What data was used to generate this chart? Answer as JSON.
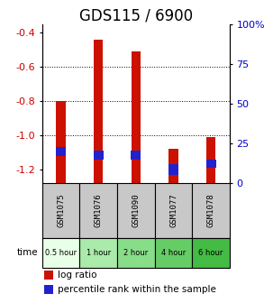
{
  "title": "GDS115 / 6900",
  "samples": [
    "GSM1075",
    "GSM1076",
    "GSM1090",
    "GSM1077",
    "GSM1078"
  ],
  "time_labels": [
    "0.5 hour",
    "1 hour",
    "2 hour",
    "4 hour",
    "6 hour"
  ],
  "log_ratios": [
    -0.8,
    -0.44,
    -0.51,
    -1.08,
    -1.01
  ],
  "percentile_tops": [
    -1.07,
    -1.09,
    -1.09,
    -1.17,
    -1.14
  ],
  "percentile_bottoms": [
    -1.12,
    -1.14,
    -1.14,
    -1.23,
    -1.19
  ],
  "ylim": [
    -1.28,
    -0.35
  ],
  "yticks_left": [
    -0.4,
    -0.6,
    -0.8,
    -1.0,
    -1.2
  ],
  "yticks_right": [
    100,
    75,
    50,
    25,
    0
  ],
  "bar_width": 0.25,
  "bar_color": "#cc1100",
  "percentile_color": "#2222cc",
  "bg_color": "#ffffff",
  "label_bg_gray": "#c8c8c8",
  "time_colors": [
    "#e8ffe8",
    "#aaeaaa",
    "#88dd88",
    "#66cc66",
    "#44bb44"
  ],
  "left_label_color": "#cc0000",
  "right_label_color": "#0000cc",
  "title_fontsize": 12,
  "tick_fontsize": 8,
  "legend_fontsize": 7.5
}
